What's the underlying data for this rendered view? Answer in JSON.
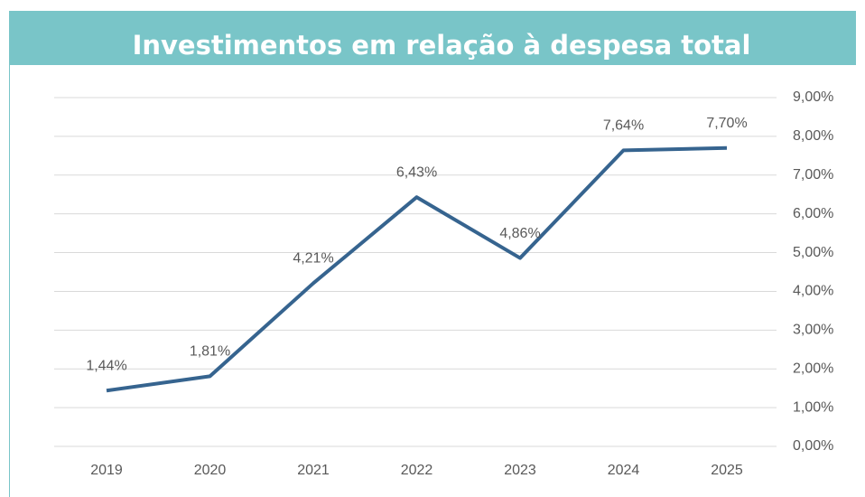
{
  "chart_data": {
    "type": "line",
    "title": "Investimentos em relação à despesa total",
    "categories": [
      "2019",
      "2020",
      "2021",
      "2022",
      "2023",
      "2024",
      "2025"
    ],
    "values": [
      1.44,
      1.81,
      4.21,
      6.43,
      4.86,
      7.64,
      7.7
    ],
    "value_labels": [
      "1,44%",
      "1,81%",
      "4,21%",
      "6,43%",
      "4,86%",
      "7,64%",
      "7,70%"
    ],
    "color": "#36648f",
    "ylim": [
      0,
      9
    ],
    "yticks": [
      {
        "value": 0,
        "label": "0,00%"
      },
      {
        "value": 1,
        "label": "1,00%"
      },
      {
        "value": 2,
        "label": "2,00%"
      },
      {
        "value": 3,
        "label": "3,00%"
      },
      {
        "value": 4,
        "label": "4,00%"
      },
      {
        "value": 5,
        "label": "5,00%"
      },
      {
        "value": 6,
        "label": "6,00%"
      },
      {
        "value": 7,
        "label": "7,00%"
      },
      {
        "value": 8,
        "label": "8,00%"
      },
      {
        "value": 9,
        "label": "9,00%"
      }
    ],
    "grid": true
  }
}
